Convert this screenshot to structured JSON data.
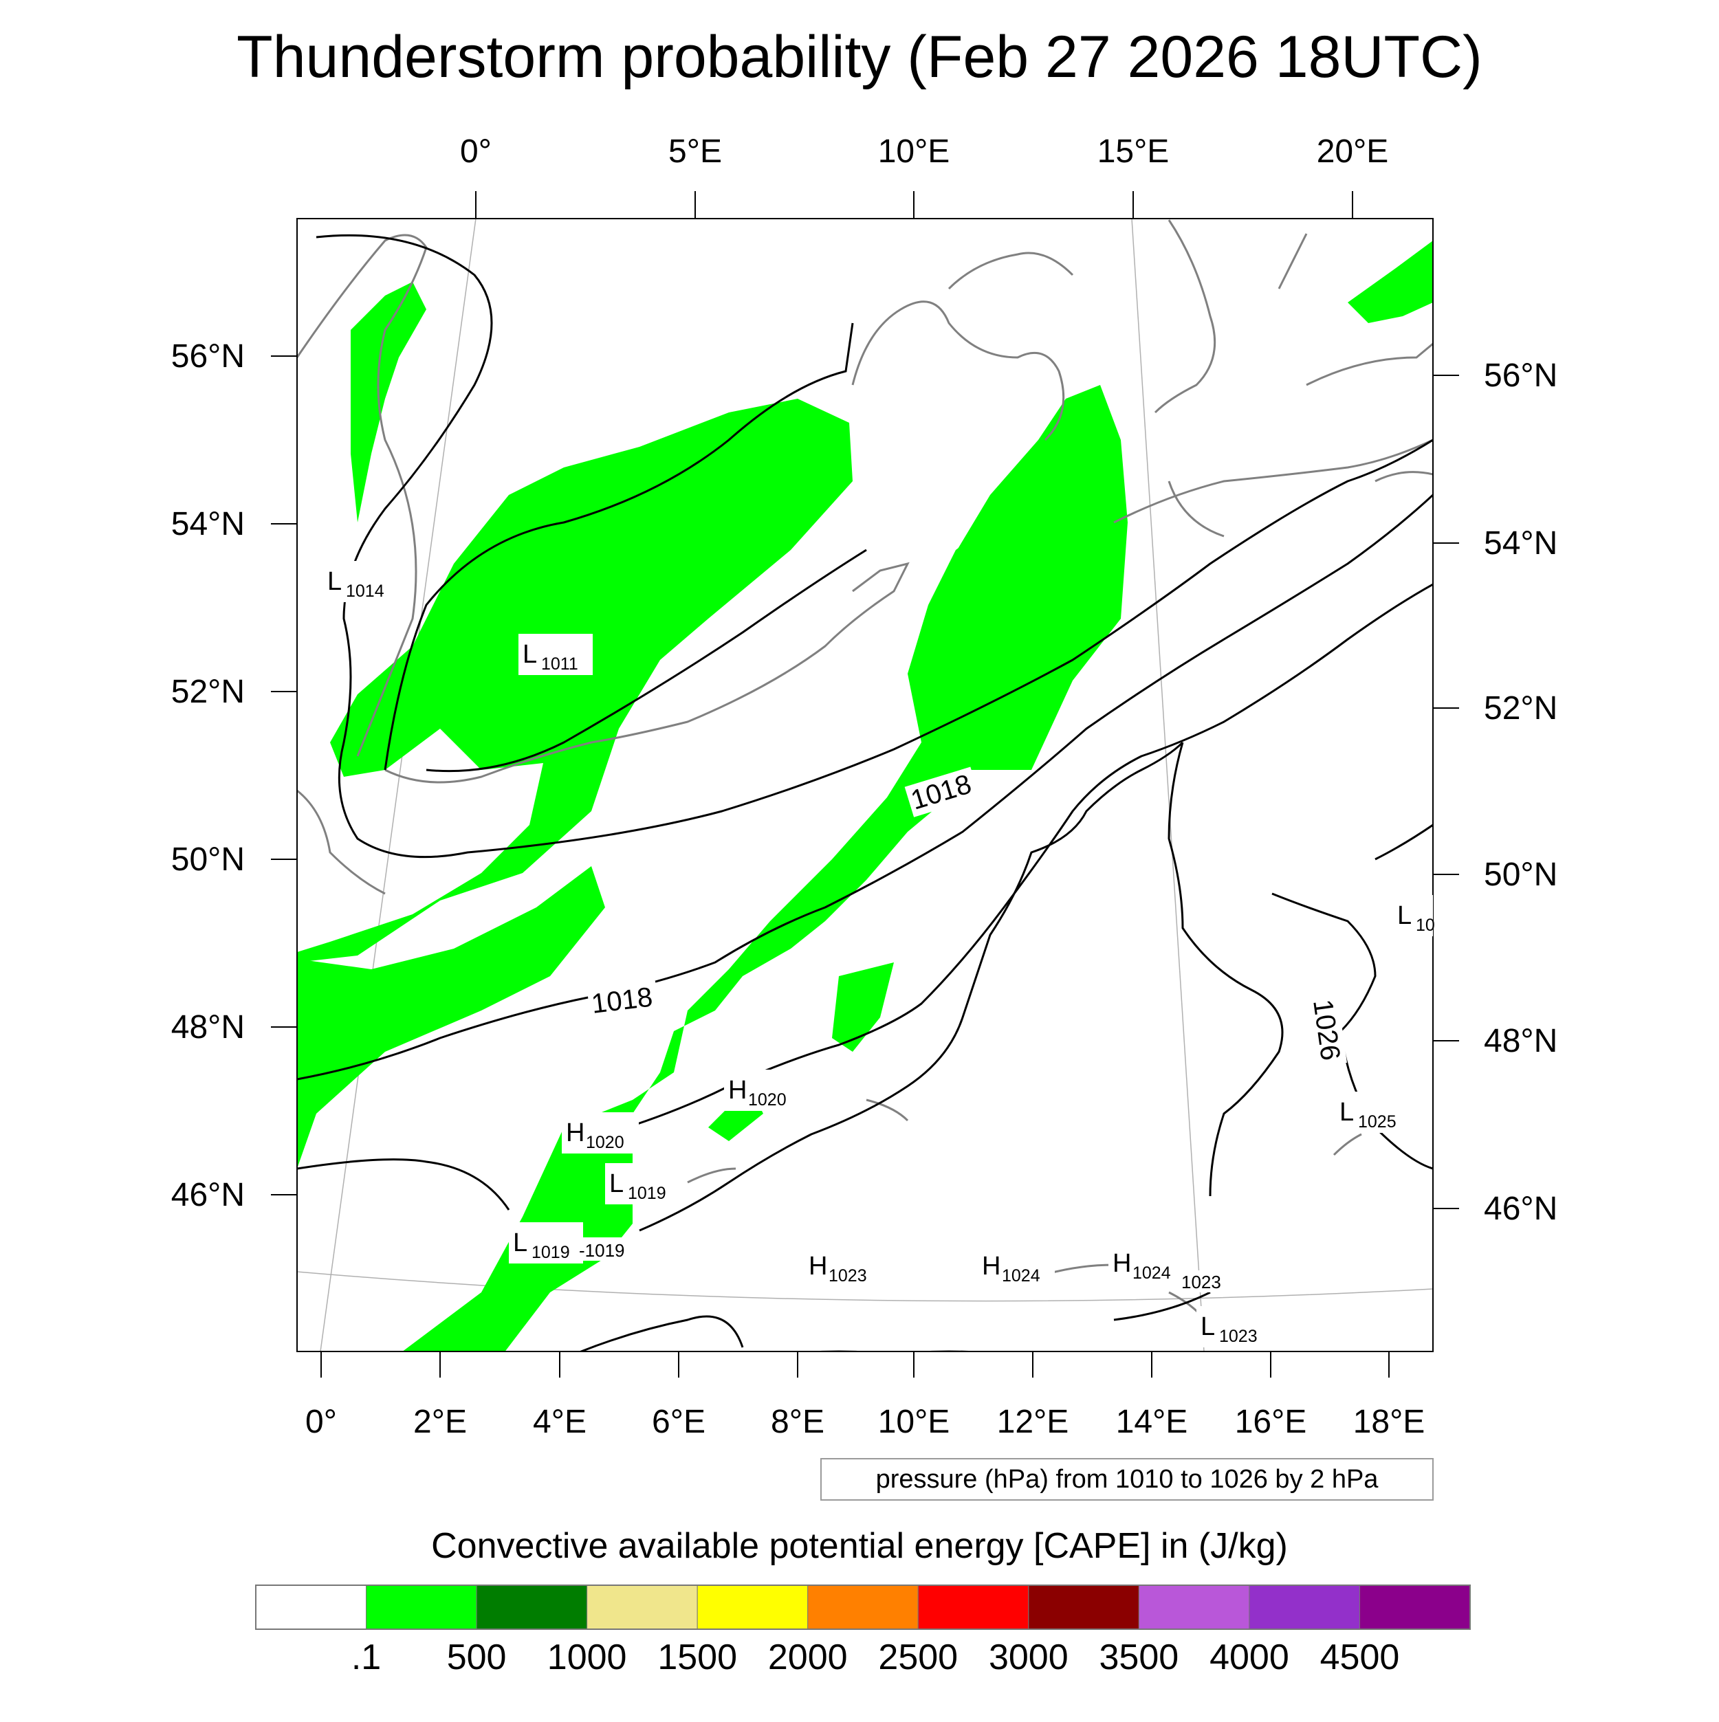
{
  "title": "Thunderstorm probability (Feb 27 2026 18UTC)",
  "top_lon_labels": [
    "0°",
    "5°E",
    "10°E",
    "15°E",
    "20°E"
  ],
  "bottom_lon_labels": [
    "0°",
    "2°E",
    "4°E",
    "6°E",
    "8°E",
    "10°E",
    "12°E",
    "14°E",
    "16°E",
    "18°E"
  ],
  "left_lat_labels": [
    "56°N",
    "54°N",
    "52°N",
    "50°N",
    "48°N",
    "46°N"
  ],
  "right_lat_labels": [
    "56°N",
    "54°N",
    "52°N",
    "50°N",
    "48°N",
    "46°N"
  ],
  "pressure_labels": [
    {
      "kind": "L",
      "value": "1014"
    },
    {
      "kind": "L",
      "value": "1011"
    },
    {
      "kind": "H",
      "value": "1020"
    },
    {
      "kind": "H",
      "value": "1020"
    },
    {
      "kind": "L",
      "value": "1019"
    },
    {
      "kind": "L",
      "value": "1019"
    },
    {
      "kind": "H",
      "value": "1023"
    },
    {
      "kind": "H",
      "value": "1024"
    },
    {
      "kind": "H",
      "value": "1024"
    },
    {
      "kind": "L",
      "value": "1023"
    },
    {
      "kind": "L",
      "value": "1025"
    },
    {
      "kind": "L",
      "value": "10"
    }
  ],
  "contour_labels": [
    "1018",
    "1018",
    "1026",
    "-1019",
    "1023"
  ],
  "contour_note": "pressure (hPa) from 1010 to 1026 by 2 hPa",
  "colorbar": {
    "title": "Convective available potential energy [CAPE] in (J/kg)",
    "labels": [
      ".1",
      "500",
      "1000",
      "1500",
      "2000",
      "2500",
      "3000",
      "3500",
      "4000",
      "4500"
    ],
    "colors": [
      "#ffffff",
      "#00ff00",
      "#007d00",
      "#f0e68c",
      "#ffff00",
      "#ff8000",
      "#ff0000",
      "#8b0000",
      "#b957d9",
      "#9330ca",
      "#8b008b"
    ]
  },
  "colors": {
    "cape_fill": "#00ff00",
    "coastline": "#808080",
    "isobar": "#000000"
  }
}
